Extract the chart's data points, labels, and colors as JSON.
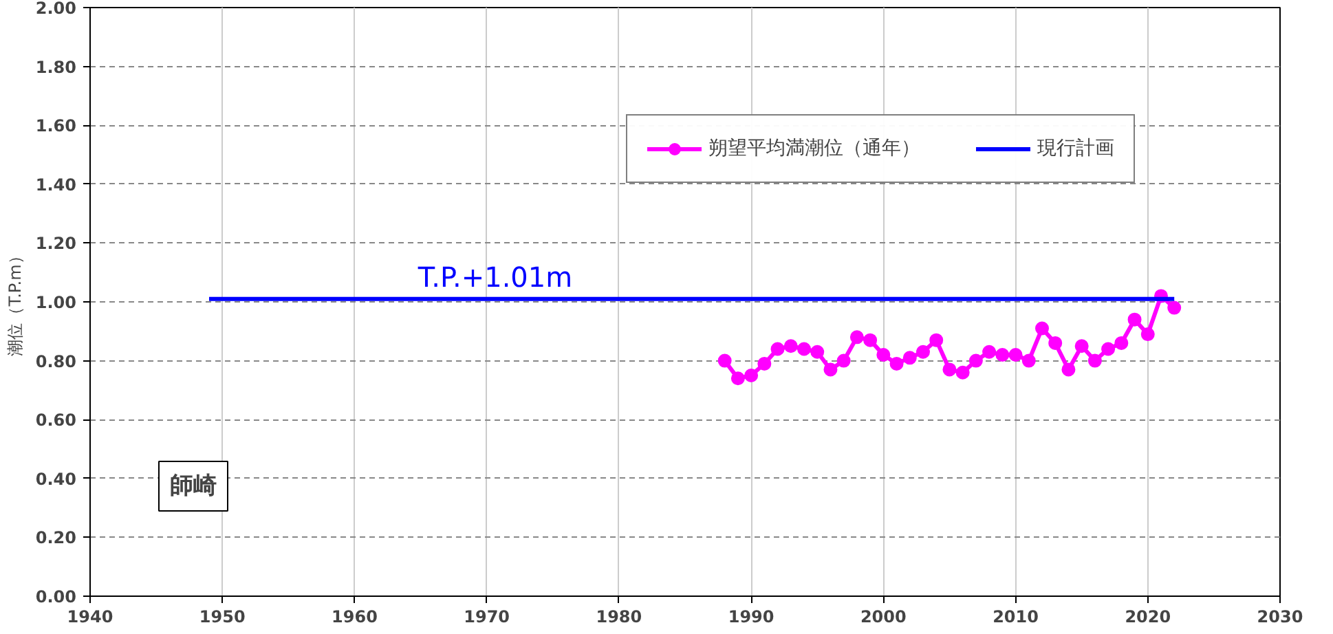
{
  "chart_data": {
    "type": "line",
    "ylabel": "潮位（T.P.m）",
    "series": [
      {
        "name": "朔望平均満潮位（通年）",
        "color": "#ff00ff",
        "marker": "circle",
        "x": [
          1988,
          1989,
          1990,
          1991,
          1992,
          1993,
          1994,
          1995,
          1996,
          1997,
          1998,
          1999,
          2000,
          2001,
          2002,
          2003,
          2004,
          2005,
          2006,
          2007,
          2008,
          2009,
          2010,
          2011,
          2012,
          2013,
          2014,
          2015,
          2016,
          2017,
          2018,
          2019,
          2020,
          2021,
          2022
        ],
        "values": [
          0.8,
          0.74,
          0.75,
          0.79,
          0.84,
          0.85,
          0.84,
          0.83,
          0.77,
          0.8,
          0.88,
          0.87,
          0.82,
          0.79,
          0.81,
          0.83,
          0.87,
          0.77,
          0.76,
          0.8,
          0.83,
          0.82,
          0.82,
          0.8,
          0.91,
          0.86,
          0.77,
          0.85,
          0.8,
          0.84,
          0.86,
          0.94,
          0.89,
          1.02,
          0.98
        ]
      },
      {
        "name": "現行計画",
        "color": "#0000ff",
        "marker": "none",
        "x": [
          1949,
          2022
        ],
        "values": [
          1.01,
          1.01
        ]
      }
    ],
    "annotations": [
      {
        "text": "T.P.+1.01m",
        "x": 1970,
        "y": 1.01
      },
      "師崎"
    ],
    "xlim": [
      1940,
      2030
    ],
    "xticks": [
      1940,
      1950,
      1960,
      1970,
      1980,
      1990,
      2000,
      2010,
      2020,
      2030
    ],
    "ylim": [
      0,
      2
    ],
    "yticks": [
      {
        "value": 0,
        "label": "0.00"
      },
      {
        "value": 0.2,
        "label": "0.20"
      },
      {
        "value": 0.4,
        "label": "0.40"
      },
      {
        "value": 0.6,
        "label": "0.60"
      },
      {
        "value": 0.8,
        "label": "0.80"
      },
      {
        "value": 1.0,
        "label": "1.00"
      },
      {
        "value": 1.2,
        "label": "1.20"
      },
      {
        "value": 1.4,
        "label": "1.40"
      },
      {
        "value": 1.6,
        "label": "1.60"
      },
      {
        "value": 1.8,
        "label": "1.80"
      },
      {
        "value": 2.0,
        "label": "2.00"
      }
    ],
    "grid": true,
    "legend": "top right"
  }
}
